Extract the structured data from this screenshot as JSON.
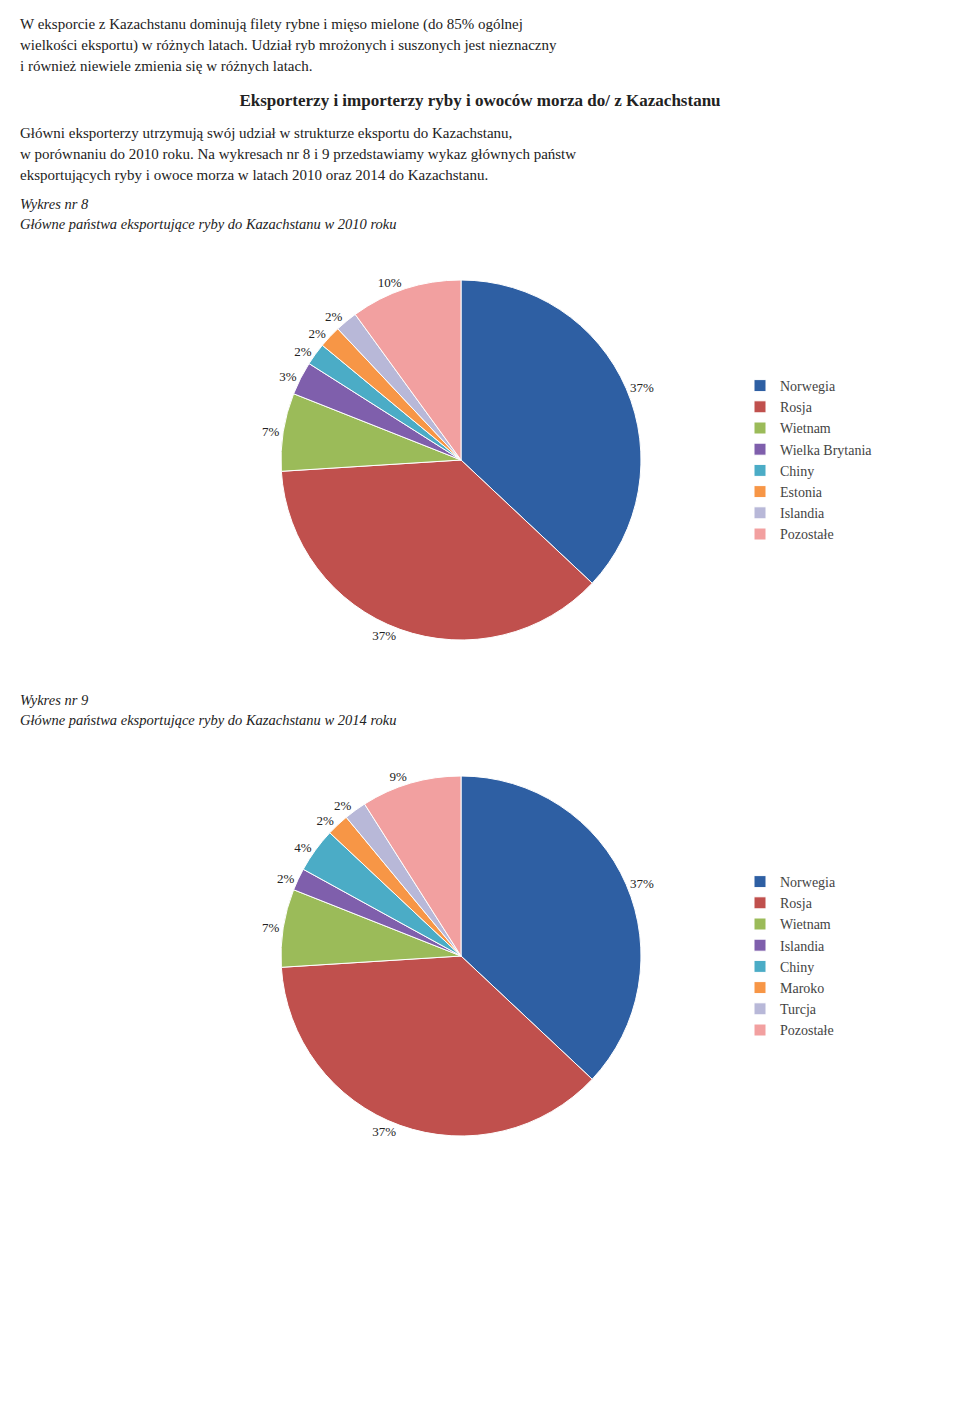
{
  "annotations": [
    "W eksporcie z Kazachstanu dominują filety rybne i mięso mielone (do 85% ogólnej",
    "wielkości eksportu) w różnych latach. Udział ryb mrożonych i suszonych jest nieznaczny",
    "i również niewiele zmienia się w różnych latach."
  ],
  "title": "Eksporterzy i importerzy ryby i owoców morza do/ z Kazachstanu",
  "subtitle": [
    "Główni eksporterzy utrzymują swój udział w strukturze eksportu do Kazachstanu,",
    "w porównaniu do 2010 roku. Na wykresach nr 8 i 9 przedstawiamy wykaz głównych państw",
    "eksportujących ryby i owoce morza w latach 2010 oraz 2014 do Kazachstanu."
  ],
  "chart_data": [
    {
      "type": "pie",
      "title": "Wykres nr 8",
      "subtitle": "Główne państwa eksportujące ryby do Kazachstanu w 2010 roku",
      "categories": [
        "Norwegia",
        "Rosja",
        "Wietnam",
        "Wielka Brytania",
        "Chiny",
        "Estonia",
        "Islandia",
        "Pozostałe"
      ],
      "values": [
        37,
        37,
        7,
        3,
        2,
        2,
        2,
        10
      ],
      "value_labels": [
        "37%",
        "37%",
        "7%",
        "3%",
        "2%",
        "2%",
        "2%",
        "10%"
      ],
      "colors": [
        "#2E5FA3",
        "#C0504D",
        "#9BBB59",
        "#7F5FAC",
        "#4BACC6",
        "#F79646",
        "#B8B8D8",
        "#F2A0A0"
      ],
      "data_labels": true,
      "legend": "right"
    },
    {
      "type": "pie",
      "title": "Wykres nr 9",
      "subtitle": "Główne państwa eksportujące ryby do Kazachstanu w 2014 roku",
      "categories": [
        "Norwegia",
        "Rosja",
        "Wietnam",
        "Islandia",
        "Chiny",
        "Maroko",
        "Turcja",
        "Pozostałe"
      ],
      "values": [
        37,
        37,
        7,
        2,
        4,
        2,
        2,
        9
      ],
      "value_labels": [
        "37%",
        "37%",
        "7%",
        "2%",
        "4%",
        "2%",
        "2%",
        "9%"
      ],
      "colors": [
        "#2E5FA3",
        "#C0504D",
        "#9BBB59",
        "#7F5FAC",
        "#4BACC6",
        "#F79646",
        "#B8B8D8",
        "#F2A0A0"
      ],
      "data_labels": true,
      "legend": "right"
    }
  ]
}
